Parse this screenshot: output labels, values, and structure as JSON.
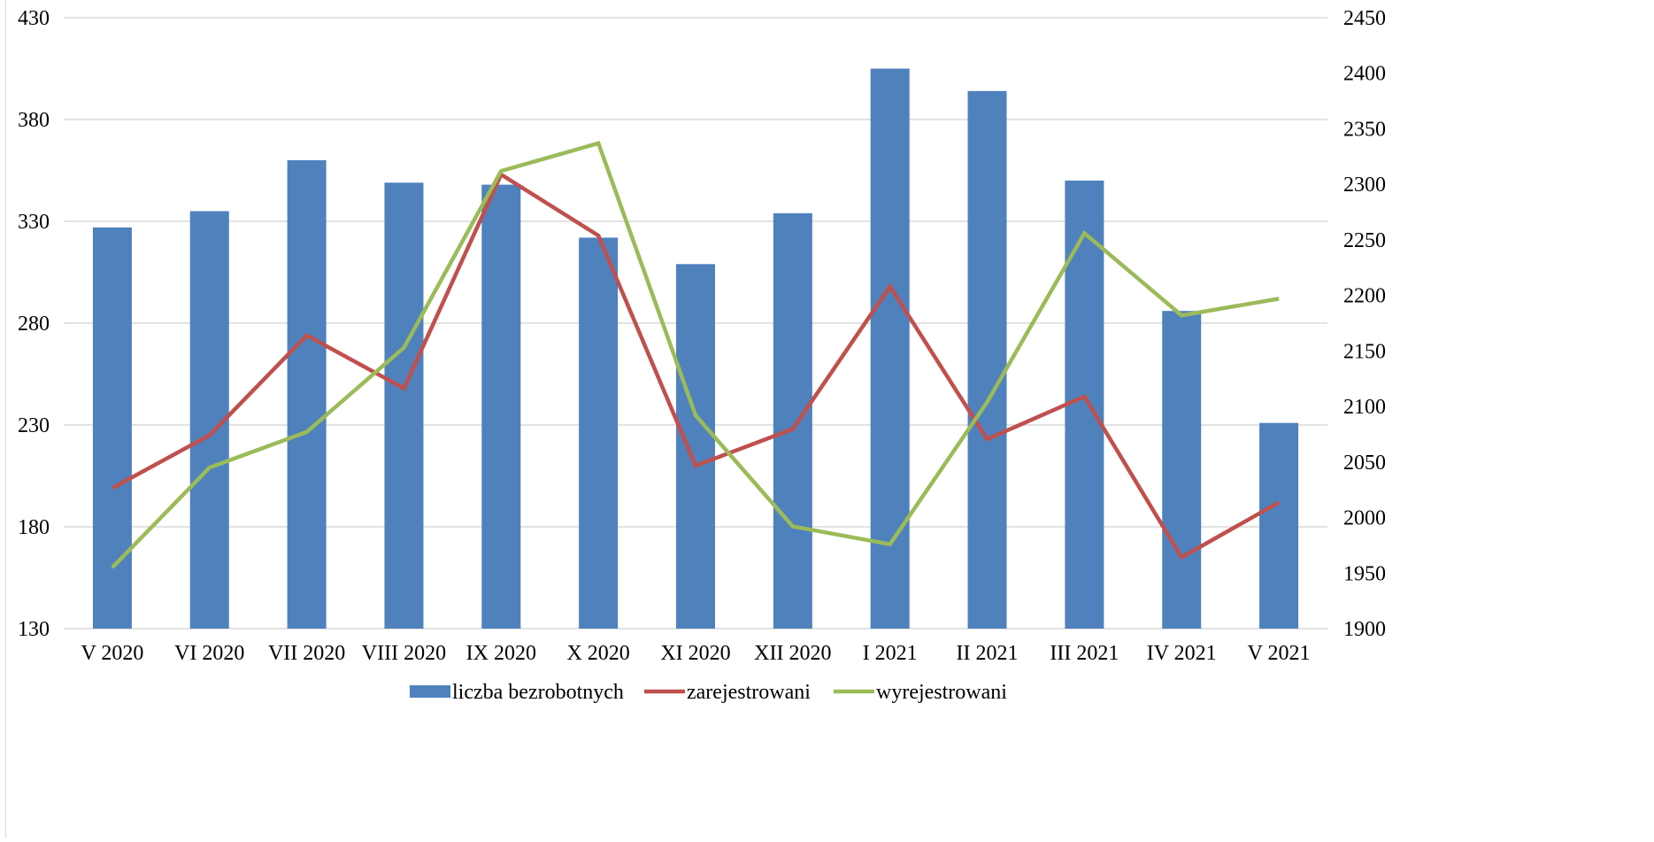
{
  "chart_data": {
    "type": "bar",
    "categories": [
      "V 2020",
      "VI 2020",
      "VII 2020",
      "VIII 2020",
      "IX 2020",
      "X 2020",
      "XI 2020",
      "XII 2020",
      "I 2021",
      "II 2021",
      "III 2021",
      "IV 2021",
      "V 2021"
    ],
    "series": [
      {
        "name": "liczba bezrobotnych",
        "type": "bar",
        "axis": "left",
        "color": "#4F81BD",
        "values": [
          327,
          335,
          360,
          349,
          348,
          322,
          309,
          334,
          405,
          394,
          350,
          286,
          231
        ]
      },
      {
        "name": "zarejestrowani",
        "type": "line",
        "axis": "left",
        "color": "#C0504D",
        "values": [
          199,
          225,
          274,
          248,
          353,
          323,
          210,
          228,
          298,
          223,
          244,
          165,
          192
        ]
      },
      {
        "name": "wyrejestrowani",
        "type": "line",
        "axis": "right",
        "color": "#9BBB59",
        "values": [
          1955,
          2045,
          2077,
          2153,
          2312,
          2337,
          2092,
          1992,
          1976,
          2104,
          2256,
          2182,
          2197
        ]
      }
    ],
    "y_left": {
      "min": 130,
      "max": 430,
      "ticks": [
        130,
        180,
        230,
        280,
        330,
        380,
        430
      ]
    },
    "y_right": {
      "min": 1900,
      "max": 2450,
      "ticks": [
        1900,
        1950,
        2000,
        2050,
        2100,
        2150,
        2200,
        2250,
        2300,
        2350,
        2400,
        2450
      ]
    },
    "grid": true,
    "legend_position": "bottom"
  }
}
